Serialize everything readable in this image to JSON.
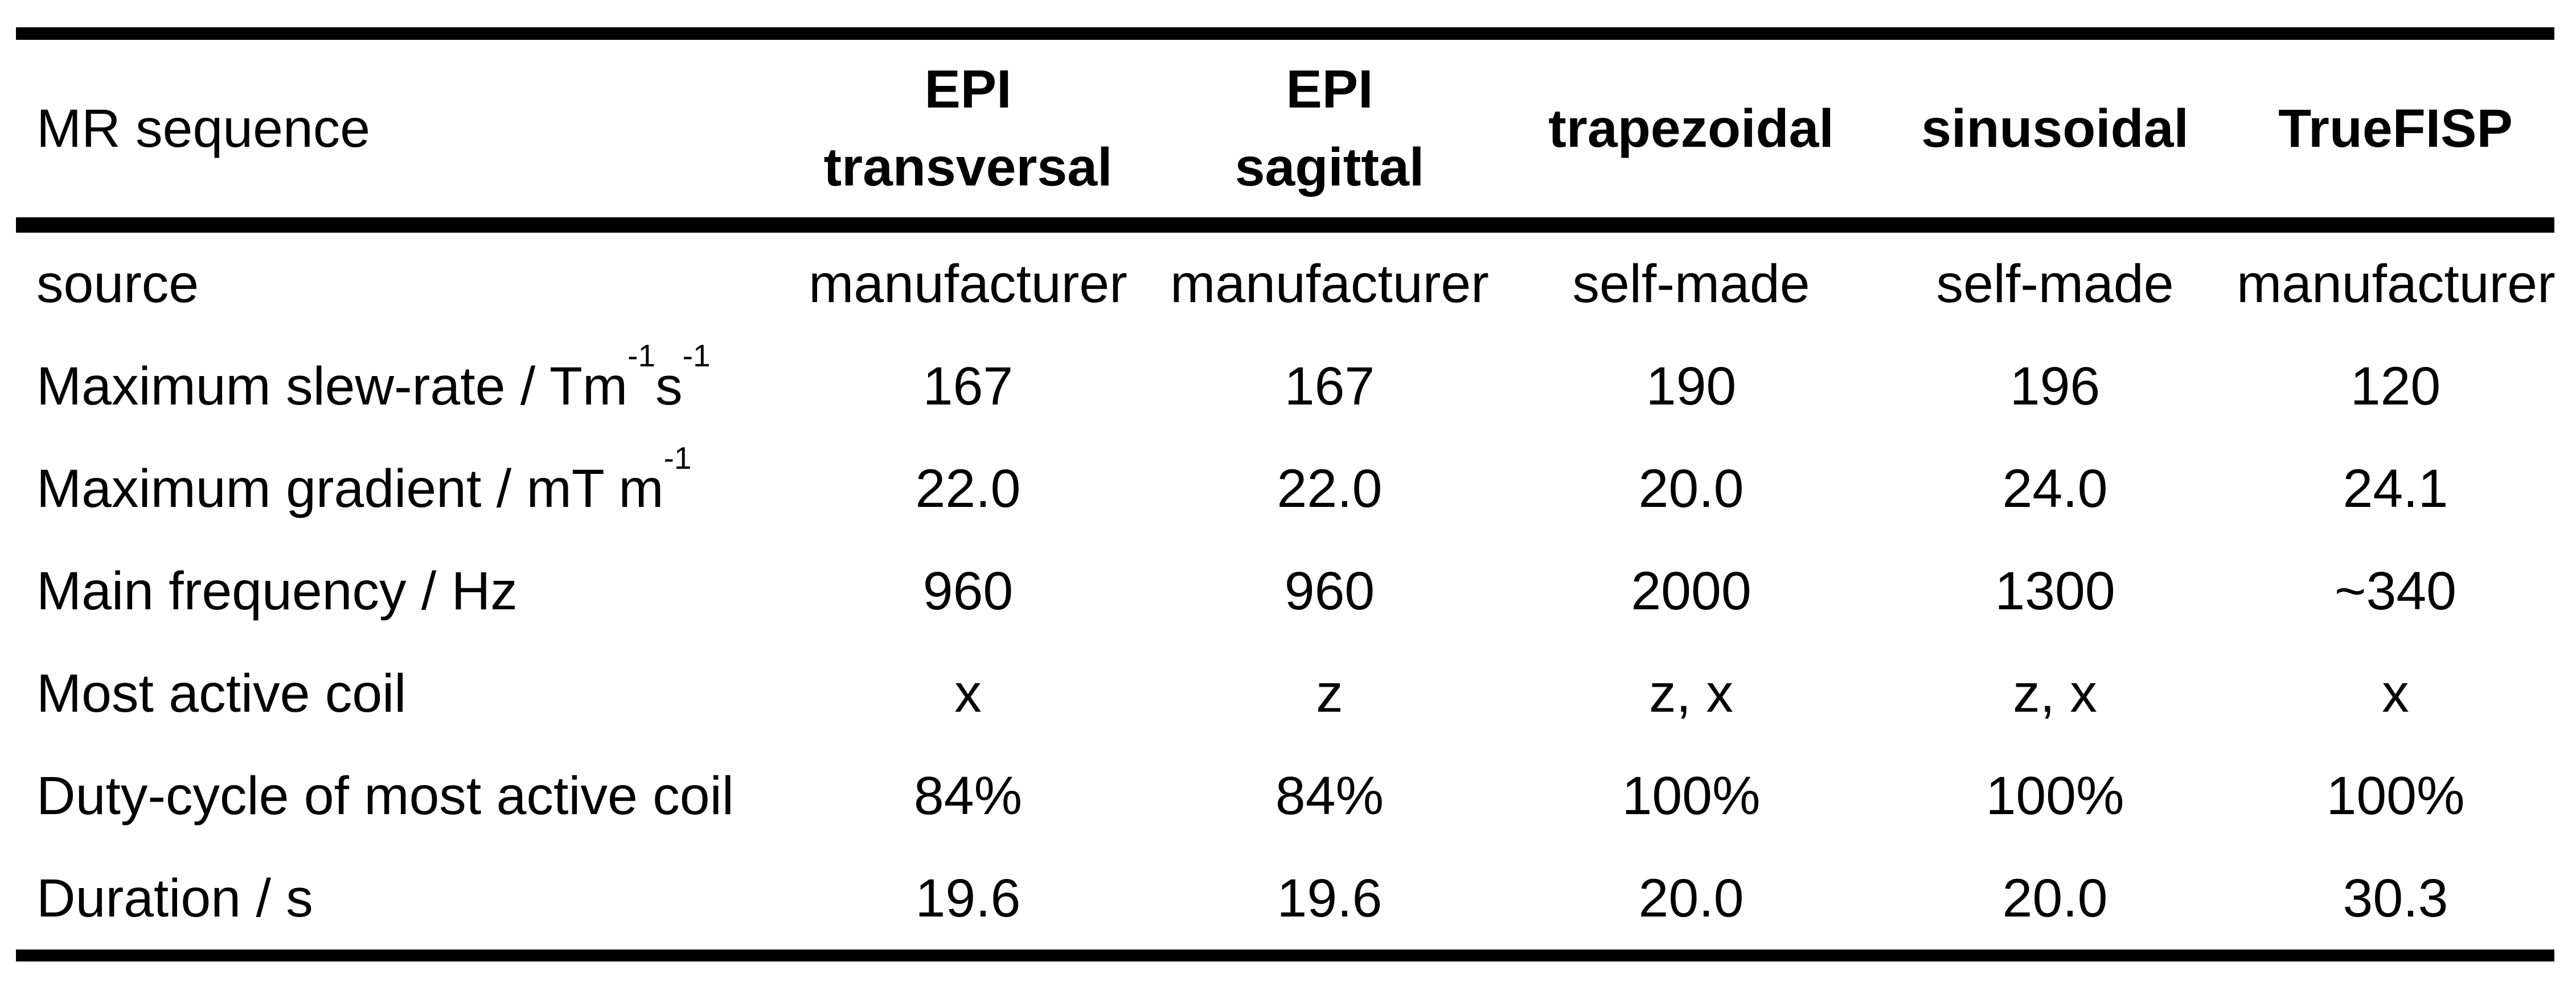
{
  "table": {
    "corner_label": "MR sequence",
    "column_headers": [
      {
        "lines": [
          "EPI",
          "transversal"
        ]
      },
      {
        "lines": [
          "EPI",
          "sagittal"
        ]
      },
      {
        "lines": [
          "trapezoidal"
        ]
      },
      {
        "lines": [
          "sinusoidal"
        ]
      },
      {
        "lines": [
          "TrueFISP"
        ]
      }
    ],
    "rows": [
      {
        "label": [
          {
            "text": "source"
          }
        ],
        "values": [
          "manufacturer",
          "manufacturer",
          "self-made",
          "self-made",
          "manufacturer"
        ]
      },
      {
        "label": [
          {
            "text": "Maximum slew-rate / Tm"
          },
          {
            "text": "-1",
            "sup": true
          },
          {
            "text": "s"
          },
          {
            "text": "-1",
            "sup": true
          }
        ],
        "values": [
          "167",
          "167",
          "190",
          "196",
          "120"
        ]
      },
      {
        "label": [
          {
            "text": "Maximum gradient / mT m"
          },
          {
            "text": "-1",
            "sup": true
          }
        ],
        "values": [
          "22.0",
          "22.0",
          "20.0",
          "24.0",
          "24.1"
        ]
      },
      {
        "label": [
          {
            "text": "Main frequency / Hz"
          }
        ],
        "values": [
          "960",
          "960",
          "2000",
          "1300",
          "~340"
        ]
      },
      {
        "label": [
          {
            "text": "Most active coil"
          }
        ],
        "values": [
          "x",
          "z",
          "z, x",
          "z, x",
          "x"
        ]
      },
      {
        "label": [
          {
            "text": "Duty-cycle of most active coil"
          }
        ],
        "values": [
          "84%",
          "84%",
          "100%",
          "100%",
          "100%"
        ]
      },
      {
        "label": [
          {
            "text": "Duration / s"
          }
        ],
        "values": [
          "19.6",
          "19.6",
          "20.0",
          "20.0",
          "30.3"
        ]
      }
    ],
    "colors": {
      "text": "#000000",
      "background": "#ffffff",
      "rule": "#000000"
    }
  }
}
